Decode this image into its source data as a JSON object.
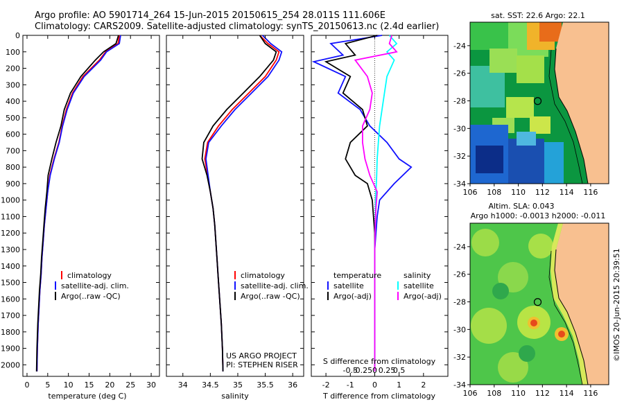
{
  "header": {
    "line1": "Argo profile: AO 5901714_264 15-Jun-2015 20150615_254 28.011S 111.606E",
    "line2": "Climatology: CARS2009. Satellite-adjusted climatology: synTS_20150613.nc (2.4d earlier)"
  },
  "colors": {
    "climatology": "#ff0000",
    "satellite": "#1010ff",
    "argo": "#000000",
    "sat_salinity": "#00ffff",
    "argo_adj_salinity": "#ff00ff",
    "land": "#f8c090"
  },
  "chart_data": [
    {
      "type": "line",
      "id": "temperature",
      "xlabel": "temperature (deg C)",
      "ylabel": "",
      "xlim": [
        -1,
        32
      ],
      "ylim": [
        2070,
        0
      ],
      "xticks": [
        0,
        5,
        10,
        15,
        20,
        25,
        30
      ],
      "xtick_labels": [
        "0",
        "5",
        "10",
        "15",
        "20",
        "25",
        "30"
      ],
      "yticks": [
        0,
        100,
        200,
        300,
        400,
        500,
        600,
        700,
        800,
        900,
        1000,
        1100,
        1200,
        1300,
        1400,
        1500,
        1600,
        1700,
        1800,
        1900,
        2000
      ],
      "ytick_labels": [
        "0",
        "100",
        "200",
        "300",
        "400",
        "500",
        "600",
        "700",
        "800",
        "900",
        "1000",
        "1100",
        "1200",
        "1300",
        "1400",
        "1500",
        "1600",
        "1700",
        "1800",
        "1900",
        "2000"
      ],
      "legend": [
        "climatology",
        "satellite-adj. clim.",
        "Argo(..raw -QC)"
      ],
      "series": [
        {
          "name": "climatology",
          "color": "#ff0000",
          "x": [
            22.3,
            22.0,
            19.0,
            17.5,
            13.5,
            11.0,
            9.5,
            8.5,
            7.7,
            6.5,
            5.5,
            5.0,
            4.6,
            4.2,
            3.9,
            3.6,
            3.4,
            3.1,
            2.9,
            2.7,
            2.5,
            2.4
          ],
          "y": [
            0,
            50,
            100,
            150,
            250,
            350,
            450,
            550,
            650,
            750,
            850,
            950,
            1050,
            1150,
            1250,
            1350,
            1450,
            1550,
            1650,
            1750,
            1900,
            2040
          ]
        },
        {
          "name": "satellite-adj. clim.",
          "color": "#1010ff",
          "x": [
            22.6,
            22.3,
            19.2,
            17.8,
            13.8,
            11.2,
            9.7,
            8.6,
            7.8,
            6.6,
            5.6,
            5.0,
            4.6,
            4.2,
            3.9,
            3.6,
            3.4,
            3.1,
            2.9,
            2.7,
            2.5,
            2.4
          ],
          "y": [
            0,
            50,
            100,
            150,
            250,
            350,
            450,
            550,
            650,
            750,
            850,
            950,
            1050,
            1150,
            1250,
            1350,
            1450,
            1550,
            1650,
            1750,
            1900,
            2040
          ]
        },
        {
          "name": "Argo(..raw -QC)",
          "color": "#000000",
          "x": [
            22.1,
            21.5,
            18.5,
            16.5,
            13.0,
            10.5,
            9.0,
            8.2,
            7.0,
            6.0,
            5.1,
            4.8,
            4.4,
            4.1,
            3.8,
            3.5,
            3.3,
            3.0,
            2.8,
            2.6,
            2.4,
            2.3
          ],
          "y": [
            0,
            50,
            100,
            150,
            250,
            350,
            450,
            550,
            650,
            750,
            850,
            950,
            1050,
            1150,
            1250,
            1350,
            1450,
            1550,
            1650,
            1750,
            1900,
            2040
          ]
        }
      ]
    },
    {
      "type": "line",
      "id": "salinity",
      "xlabel": "salinity",
      "ylabel": "",
      "xlim": [
        33.7,
        36.2
      ],
      "ylim": [
        2070,
        0
      ],
      "xticks": [
        34,
        34.5,
        35,
        35.5,
        36
      ],
      "xtick_labels": [
        "34",
        "34.5",
        "35",
        "35.5",
        "36"
      ],
      "legend": [
        "climatology",
        "satellite-adj. clim.",
        "Argo(..raw -QC)"
      ],
      "annotations": [
        "US ARGO PROJECT",
        "PI: STEPHEN RISER"
      ],
      "series": [
        {
          "name": "climatology",
          "color": "#ff0000",
          "x": [
            35.4,
            35.55,
            35.75,
            35.7,
            35.5,
            35.2,
            34.9,
            34.65,
            34.45,
            34.4,
            34.45,
            34.5,
            34.55,
            34.58,
            34.6,
            34.62,
            34.64,
            34.66,
            34.68,
            34.7,
            34.72,
            34.73
          ],
          "y": [
            0,
            50,
            100,
            150,
            250,
            350,
            450,
            550,
            650,
            750,
            850,
            950,
            1050,
            1150,
            1250,
            1350,
            1450,
            1550,
            1650,
            1750,
            1900,
            2040
          ]
        },
        {
          "name": "satellite-adj. clim.",
          "color": "#1010ff",
          "x": [
            35.45,
            35.6,
            35.8,
            35.75,
            35.55,
            35.25,
            34.95,
            34.7,
            34.47,
            34.42,
            34.46,
            34.5,
            34.55,
            34.58,
            34.6,
            34.62,
            34.64,
            34.66,
            34.68,
            34.7,
            34.72,
            34.73
          ],
          "y": [
            0,
            50,
            100,
            150,
            250,
            350,
            450,
            550,
            650,
            750,
            850,
            950,
            1050,
            1150,
            1250,
            1350,
            1450,
            1550,
            1650,
            1750,
            1900,
            2040
          ]
        },
        {
          "name": "Argo(..raw -QC)",
          "color": "#000000",
          "x": [
            35.4,
            35.5,
            35.7,
            35.65,
            35.4,
            35.1,
            34.8,
            34.55,
            34.38,
            34.35,
            34.44,
            34.5,
            34.55,
            34.58,
            34.6,
            34.62,
            34.64,
            34.66,
            34.68,
            34.7,
            34.72,
            34.73
          ],
          "y": [
            0,
            50,
            100,
            150,
            250,
            350,
            450,
            550,
            650,
            750,
            850,
            950,
            1050,
            1150,
            1250,
            1350,
            1450,
            1550,
            1650,
            1750,
            1900,
            2040
          ]
        }
      ]
    },
    {
      "type": "line",
      "id": "difference",
      "xlabel": "T difference from climatology",
      "x2label": "S difference from climatology",
      "xlim": [
        -2.6,
        3.0
      ],
      "ylim": [
        2070,
        0
      ],
      "xticks": [
        -2,
        -1,
        0,
        1,
        2
      ],
      "xtick_labels": [
        "-2",
        "-1",
        "0",
        "1",
        "2"
      ],
      "x2ticks": [
        -1.0,
        -0.5,
        0,
        0.5,
        1.0
      ],
      "x2tick_labels": [
        "-0.5",
        "-0.25",
        "0",
        "0.25",
        "0.5"
      ],
      "legend_temperature": [
        "temperature",
        "satellite",
        "Argo(-adj)"
      ],
      "legend_salinity": [
        "salinity",
        "satellite",
        "Argo(-adj)"
      ],
      "series": [
        {
          "name": "temperature satellite",
          "color": "#1010ff",
          "x": [
            0.3,
            -1.8,
            -1.3,
            -2.5,
            -1.2,
            -1.5,
            -0.6,
            -0.2,
            0.5,
            1.0,
            1.5,
            0.8,
            0.2,
            0.1,
            0.05,
            0.0,
            0.0,
            0.0,
            0.0,
            0.0,
            0.0
          ],
          "y": [
            0,
            50,
            120,
            160,
            250,
            350,
            450,
            550,
            650,
            750,
            800,
            900,
            1000,
            1100,
            1200,
            1300,
            1400,
            1500,
            1700,
            1900,
            2040
          ]
        },
        {
          "name": "temperature Argo(-adj)",
          "color": "#000000",
          "x": [
            0.1,
            -1.2,
            -0.8,
            -2.0,
            -1.0,
            -1.3,
            -0.5,
            -0.3,
            -1.0,
            -1.2,
            -0.8,
            -0.3,
            -0.1,
            -0.05,
            0.0,
            0.0,
            0.0,
            0.0,
            0.0,
            0.0,
            0.0
          ],
          "y": [
            0,
            50,
            120,
            160,
            250,
            350,
            450,
            550,
            650,
            750,
            850,
            900,
            1000,
            1100,
            1200,
            1300,
            1400,
            1500,
            1700,
            1900,
            2040
          ]
        },
        {
          "name": "salinity satellite",
          "color": "#00ffff",
          "x": [
            0.6,
            0.9,
            0.5,
            0.8,
            0.5,
            0.4,
            0.3,
            0.2,
            0.15,
            0.1,
            0.08,
            0.05,
            0.03,
            0.02,
            0.0,
            0.0,
            0.0,
            0.0,
            0.0
          ],
          "y": [
            0,
            50,
            100,
            150,
            250,
            350,
            450,
            550,
            650,
            750,
            850,
            950,
            1050,
            1150,
            1300,
            1500,
            1700,
            1900,
            2040
          ]
        },
        {
          "name": "salinity Argo(-adj)",
          "color": "#ff00ff",
          "x": [
            0.7,
            0.6,
            0.9,
            -0.8,
            -0.3,
            -0.1,
            -0.2,
            -0.5,
            -0.5,
            -0.4,
            -0.2,
            0.1,
            0.05,
            0.02,
            0.0,
            0.0,
            0.0,
            0.0,
            0.0
          ],
          "y": [
            0,
            50,
            100,
            150,
            250,
            350,
            450,
            550,
            650,
            750,
            850,
            950,
            1050,
            1150,
            1300,
            1500,
            1700,
            1900,
            2040
          ]
        }
      ]
    },
    {
      "type": "heatmap",
      "id": "sst-map",
      "title": "sat. SST: 22.6  Argo: 22.1",
      "xlim": [
        106,
        117.5
      ],
      "ylim": [
        -34,
        -22.3
      ],
      "xticks": [
        106,
        108,
        110,
        112,
        114,
        116
      ],
      "xtick_labels": [
        "106",
        "108",
        "110",
        "112",
        "114",
        "116"
      ],
      "yticks": [
        -24,
        -26,
        -28,
        -30,
        -32,
        -34
      ],
      "ytick_labels": [
        "-24",
        "-26",
        "-28",
        "-30",
        "-32",
        "-34"
      ],
      "marker": {
        "lon": 111.606,
        "lat": -28.011
      }
    },
    {
      "type": "heatmap",
      "id": "sla-map",
      "title": "Altim. SLA: 0.043",
      "subtitle": "Argo h1000: -0.0013 h2000: -0.011",
      "xlim": [
        106,
        117.5
      ],
      "ylim": [
        -34,
        -22.3
      ],
      "xticks": [
        106,
        108,
        110,
        112,
        114,
        116
      ],
      "xtick_labels": [
        "106",
        "108",
        "110",
        "112",
        "114",
        "116"
      ],
      "yticks": [
        -24,
        -26,
        -28,
        -30,
        -32,
        -34
      ],
      "ytick_labels": [
        "-24",
        "-26",
        "-28",
        "-30",
        "-32",
        "-34"
      ],
      "marker": {
        "lon": 111.606,
        "lat": -28.011
      }
    }
  ],
  "footer": {
    "stamp": "©IMOS 20-Jun-2015 20:39:51"
  }
}
